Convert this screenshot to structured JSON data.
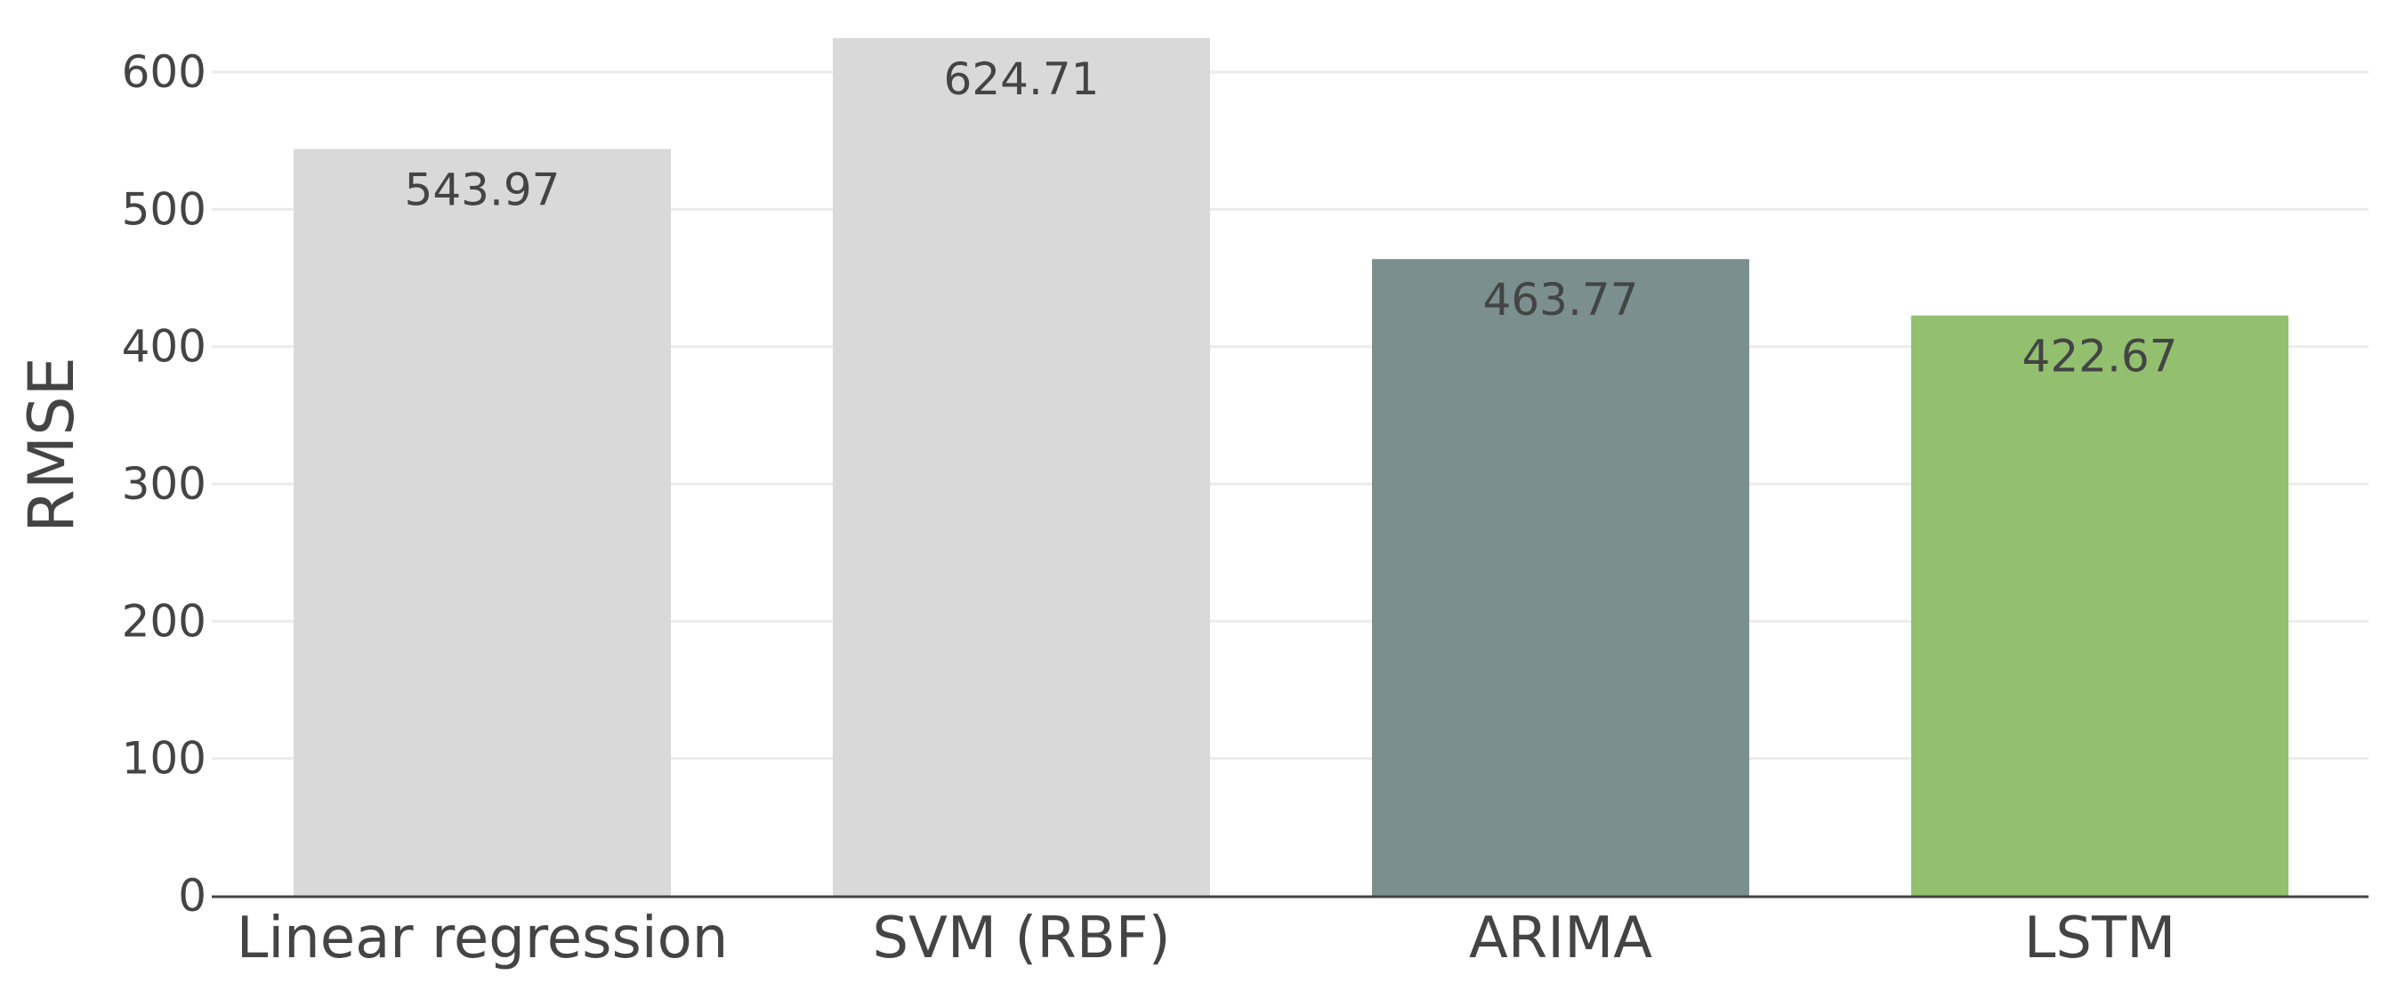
{
  "chart_data": {
    "type": "bar",
    "categories": [
      "Linear regression",
      "SVM (RBF)",
      "ARIMA",
      "LSTM"
    ],
    "values": [
      543.97,
      624.71,
      463.77,
      422.67
    ],
    "value_labels": [
      "543.97",
      "624.71",
      "463.77",
      "422.67"
    ],
    "bar_colors": [
      "#d9d9d9",
      "#d9d9d9",
      "#7b8f8f",
      "#92c06f"
    ],
    "title": "",
    "xlabel": "",
    "ylabel": "RMSE",
    "ylim": [
      0,
      650
    ],
    "yticks": [
      0,
      100,
      200,
      300,
      400,
      500,
      600
    ],
    "ytick_labels": [
      "0",
      "100",
      "200",
      "300",
      "400",
      "500",
      "600"
    ],
    "grid": true,
    "grid_color": "#ebebeb",
    "axis_color": "#444444",
    "text_color": "#444444",
    "legend": "none"
  }
}
